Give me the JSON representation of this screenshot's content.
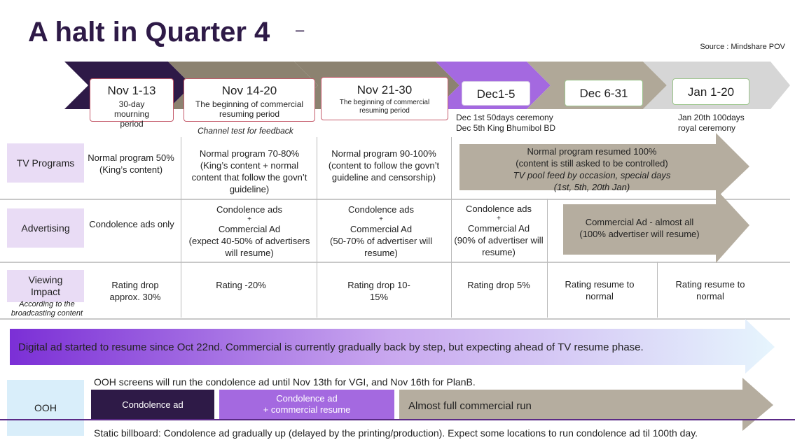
{
  "title": "A halt in Quarter 4",
  "title_dash": "–",
  "source": "Source : Mindshare POV",
  "periods": [
    {
      "date": "Nov 1-13",
      "sub": "30-day mourning period"
    },
    {
      "date": "Nov 14-20",
      "sub": "The beginning of commercial resuming period",
      "note": "Channel test for feedback"
    },
    {
      "date": "Nov 21-30",
      "sub": "The beginning of commercial resuming period"
    },
    {
      "date": "Dec1-5",
      "note1": "Dec 1st 50days ceremony",
      "note2": "Dec 5th King Bhumibol BD"
    },
    {
      "date": "Dec 6-31"
    },
    {
      "date": "Jan 1-20",
      "note1": "Jan 20th 100days",
      "note2": "royal ceremony"
    }
  ],
  "rows": {
    "tv": {
      "label": "TV Programs",
      "c1": "Normal program 50% (King’s content)",
      "c2": "Normal program 70-80% (King’s content + normal content that follow the govn’t guideline)",
      "c3": "Normal program 90-100% (content to follow the govn’t guideline and censorship)",
      "arrow1": "Normal program resumed 100%",
      "arrow2": "(content is still asked to be controlled)",
      "arrow3": "TV pool feed by occasion, special days",
      "arrow4": "(1st, 5th, 20th Jan)"
    },
    "ads": {
      "label": "Advertising",
      "c1": "Condolence ads only",
      "c2a": "Condolence ads",
      "c2b": "+",
      "c2c": "Commercial Ad",
      "c2d": "(expect 40-50% of advertisers will resume)",
      "c3a": "Condolence ads",
      "c3b": "+",
      "c3c": "Commercial Ad",
      "c3d": "(50-70% of advertiser will resume)",
      "c4a": "Condolence ads",
      "c4b": "+",
      "c4c": "Commercial Ad",
      "c4d": "(90% of advertiser will resume)",
      "arrow1": "Commercial Ad  - almost all",
      "arrow2": "(100% advertiser will resume)"
    },
    "viewing": {
      "label1": "Viewing",
      "label2": "Impact",
      "label3": "According to the broadcasting content",
      "c1": "Rating drop approx. 30%",
      "c2": "Rating -20%",
      "c3": "Rating drop 10-15%",
      "c4": "Rating drop 5%",
      "c5": "Rating resume to normal",
      "c6": "Rating resume to normal"
    }
  },
  "digital": "Digital ad started to resume since Oct 22nd.  Commercial is currently gradually back by step, but expecting ahead of TV resume phase.",
  "ooh": {
    "label": "OOH",
    "line1": "OOH screens will run the condolence ad until Nov 13th for VGI, and Nov 16th for PlanB.",
    "bar1": "Condolence ad",
    "bar2a": "Condolence ad",
    "bar2b": "+ commercial resume",
    "bar3": "Almost full commercial run",
    "line2": "Static billboard: Condolence ad gradually up (delayed by the printing/production). Expect some locations to run condolence ad til 100th day."
  },
  "colors": {
    "dark_purple": "#2e1a47",
    "taupe": "#8c8270",
    "light_purple": "#a469e0",
    "mid_taupe": "#b0a898",
    "light_gray": "#d6d6d6",
    "arrow_fill": "#b5ad9f",
    "row_label_bg": "#e9dcf5",
    "ooh_label_bg": "#d9eefa"
  }
}
